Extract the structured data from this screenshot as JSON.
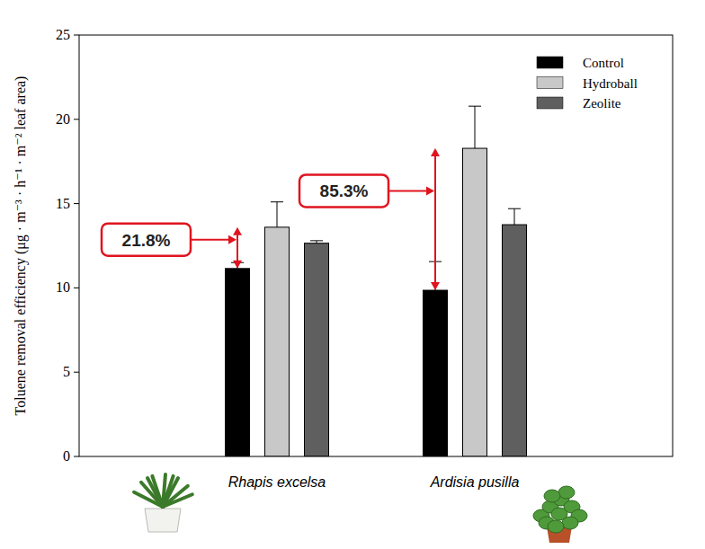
{
  "chart_data": {
    "type": "bar",
    "y_label": "Toluene removal efficiency (μg · m⁻³ · h⁻¹ · m⁻² leaf area)",
    "categories": [
      "Rhapis excelsa",
      "Ardisia pusilla"
    ],
    "series": [
      {
        "name": "Control",
        "color": "#000000",
        "values": [
          11.15,
          9.86
        ],
        "errors": [
          0.35,
          1.7
        ]
      },
      {
        "name": "Hydroball",
        "color": "#c8c8c8",
        "values": [
          13.6,
          18.28
        ],
        "errors": [
          1.5,
          2.5
        ]
      },
      {
        "name": "Zeolite",
        "color": "#5f5f5f",
        "values": [
          12.65,
          13.75
        ],
        "errors": [
          0.15,
          0.95
        ]
      }
    ],
    "ylim": [
      0,
      25
    ],
    "yticks": [
      0,
      5,
      10,
      15,
      20,
      25
    ],
    "grid": false,
    "legend": "upper right",
    "annotations": [
      {
        "text": "21.8%",
        "category": "Rhapis excelsa"
      },
      {
        "text": "85.3%",
        "category": "Ardisia pusilla"
      }
    ]
  }
}
